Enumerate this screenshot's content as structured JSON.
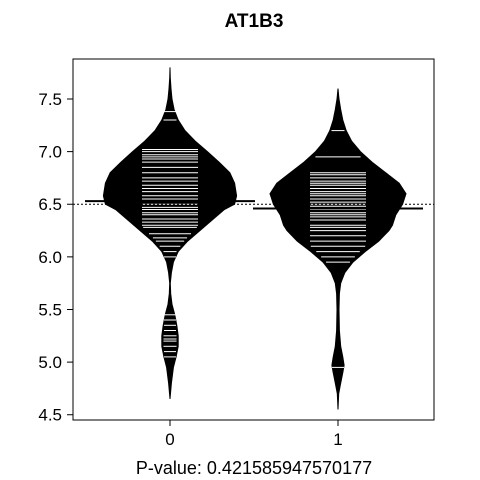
{
  "chart_data": {
    "type": "beanplot",
    "title": "AT1B3",
    "xlabel": "P-value: 0.421585947570177",
    "ylabel": "",
    "ylim": [
      4.45,
      7.88
    ],
    "yticks": [
      4.5,
      5.0,
      5.5,
      6.0,
      6.5,
      7.0,
      7.5
    ],
    "ytick_labels": [
      "4.5",
      "5.0",
      "5.5",
      "6.0",
      "6.5",
      "7.0",
      "7.5"
    ],
    "categories": [
      "0",
      "1"
    ],
    "overall_mean": 6.5,
    "grid": false,
    "legend": "none",
    "groups": [
      {
        "category": "0",
        "mean": 6.53,
        "density": [
          [
            4.65,
            0.0
          ],
          [
            4.8,
            0.02
          ],
          [
            4.95,
            0.05
          ],
          [
            5.05,
            0.09
          ],
          [
            5.15,
            0.12
          ],
          [
            5.25,
            0.12
          ],
          [
            5.35,
            0.1
          ],
          [
            5.45,
            0.07
          ],
          [
            5.55,
            0.03
          ],
          [
            5.65,
            0.01
          ],
          [
            5.75,
            0.005
          ],
          [
            5.85,
            0.02
          ],
          [
            5.95,
            0.05
          ],
          [
            6.05,
            0.12
          ],
          [
            6.15,
            0.26
          ],
          [
            6.25,
            0.44
          ],
          [
            6.35,
            0.62
          ],
          [
            6.45,
            0.8
          ],
          [
            6.5,
            0.95
          ],
          [
            6.58,
            0.98
          ],
          [
            6.7,
            0.95
          ],
          [
            6.8,
            0.88
          ],
          [
            6.9,
            0.72
          ],
          [
            7.0,
            0.55
          ],
          [
            7.1,
            0.37
          ],
          [
            7.2,
            0.22
          ],
          [
            7.3,
            0.12
          ],
          [
            7.4,
            0.06
          ],
          [
            7.5,
            0.03
          ],
          [
            7.6,
            0.015
          ],
          [
            7.7,
            0.005
          ],
          [
            7.8,
            0.0
          ]
        ],
        "observations": [
          5.05,
          5.1,
          5.15,
          5.2,
          5.22,
          5.25,
          5.3,
          5.35,
          5.4,
          5.45,
          6.0,
          6.05,
          6.1,
          6.15,
          6.18,
          6.22,
          6.28,
          6.3,
          6.33,
          6.36,
          6.4,
          6.42,
          6.45,
          6.47,
          6.5,
          6.53,
          6.55,
          6.58,
          6.62,
          6.65,
          6.68,
          6.72,
          6.75,
          6.8,
          6.85,
          6.9,
          6.93,
          6.95,
          6.97,
          7.0,
          7.02,
          7.3,
          7.38
        ]
      },
      {
        "category": "1",
        "mean": 6.46,
        "density": [
          [
            4.55,
            0.0
          ],
          [
            4.7,
            0.01
          ],
          [
            4.8,
            0.04
          ],
          [
            4.9,
            0.07
          ],
          [
            4.97,
            0.09
          ],
          [
            5.05,
            0.07
          ],
          [
            5.15,
            0.04
          ],
          [
            5.3,
            0.02
          ],
          [
            5.5,
            0.015
          ],
          [
            5.65,
            0.02
          ],
          [
            5.75,
            0.04
          ],
          [
            5.85,
            0.1
          ],
          [
            5.95,
            0.22
          ],
          [
            6.05,
            0.4
          ],
          [
            6.15,
            0.6
          ],
          [
            6.25,
            0.75
          ],
          [
            6.3,
            0.8
          ],
          [
            6.4,
            0.85
          ],
          [
            6.5,
            0.95
          ],
          [
            6.6,
            1.0
          ],
          [
            6.7,
            0.9
          ],
          [
            6.8,
            0.7
          ],
          [
            6.9,
            0.5
          ],
          [
            7.0,
            0.33
          ],
          [
            7.1,
            0.2
          ],
          [
            7.2,
            0.12
          ],
          [
            7.3,
            0.07
          ],
          [
            7.4,
            0.04
          ],
          [
            7.5,
            0.015
          ],
          [
            7.6,
            0.0
          ]
        ],
        "observations": [
          4.95,
          5.95,
          6.0,
          6.05,
          6.1,
          6.15,
          6.2,
          6.25,
          6.28,
          6.3,
          6.35,
          6.38,
          6.4,
          6.42,
          6.45,
          6.48,
          6.5,
          6.52,
          6.55,
          6.58,
          6.6,
          6.62,
          6.65,
          6.68,
          6.7,
          6.72,
          6.75,
          6.78,
          6.8,
          6.95,
          7.2
        ]
      }
    ]
  }
}
